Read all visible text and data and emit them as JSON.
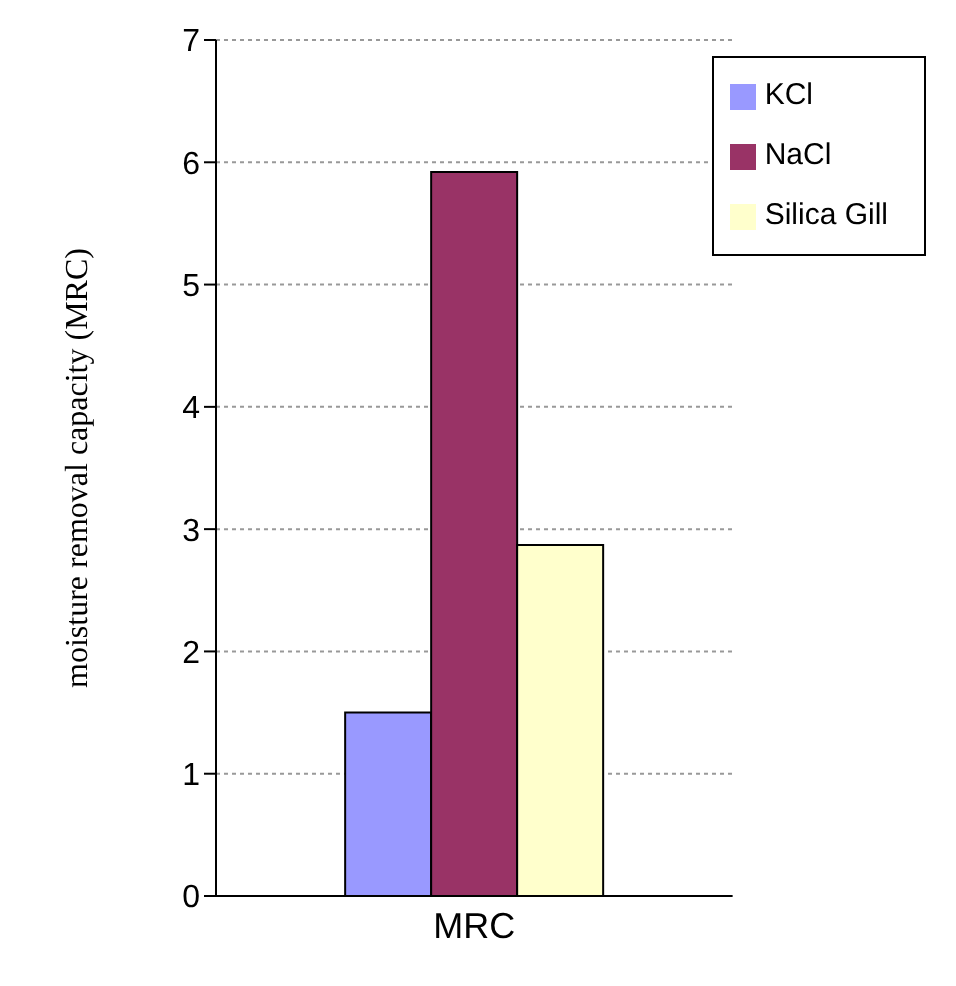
{
  "chart_data": {
    "type": "bar",
    "ylabel": "moisture removal capacity (MRC)",
    "categories": [
      "MRC"
    ],
    "series": [
      {
        "name": "KCl",
        "color": "#9999ff",
        "values": [
          1.5
        ]
      },
      {
        "name": "NaCl",
        "color": "#993366",
        "values": [
          5.92
        ]
      },
      {
        "name": "Silica Gill",
        "color": "#ffffcc",
        "values": [
          2.87
        ]
      }
    ],
    "ylim": [
      0,
      7
    ],
    "yticks": [
      0,
      1,
      2,
      3,
      4,
      5,
      6,
      7
    ],
    "grid": "y",
    "legend": "top right"
  }
}
